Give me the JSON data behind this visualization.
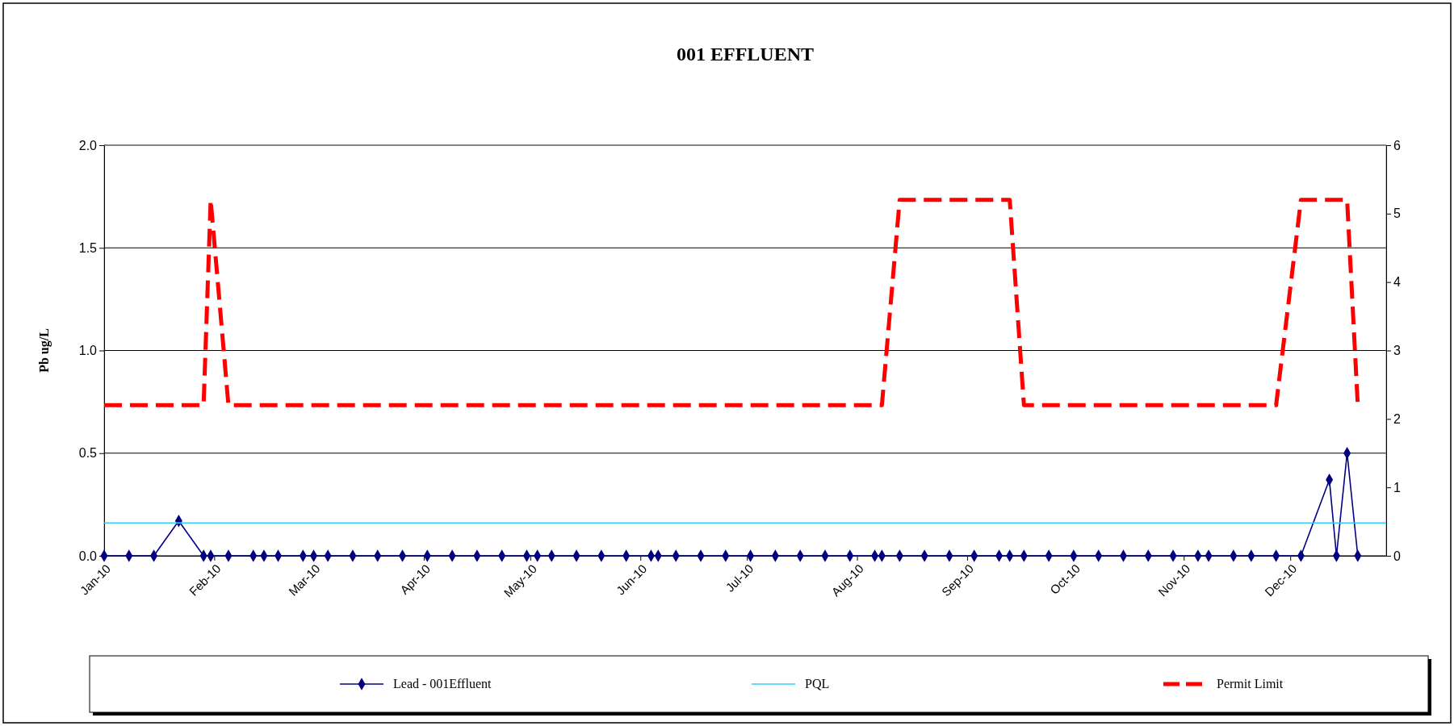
{
  "chart_data": {
    "type": "line",
    "title": "001 EFFLUENT",
    "ylabel": "Pb ug/L",
    "x": [
      "2010-01-01",
      "2010-01-08",
      "2010-01-15",
      "2010-01-22",
      "2010-01-29",
      "2010-01-31",
      "2010-02-05",
      "2010-02-12",
      "2010-02-15",
      "2010-02-19",
      "2010-02-26",
      "2010-03-01",
      "2010-03-05",
      "2010-03-12",
      "2010-03-19",
      "2010-03-26",
      "2010-04-02",
      "2010-04-09",
      "2010-04-16",
      "2010-04-23",
      "2010-04-30",
      "2010-05-03",
      "2010-05-07",
      "2010-05-14",
      "2010-05-21",
      "2010-05-28",
      "2010-06-04",
      "2010-06-06",
      "2010-06-11",
      "2010-06-18",
      "2010-06-25",
      "2010-07-02",
      "2010-07-09",
      "2010-07-16",
      "2010-07-23",
      "2010-07-30",
      "2010-08-06",
      "2010-08-08",
      "2010-08-13",
      "2010-08-20",
      "2010-08-27",
      "2010-09-03",
      "2010-09-10",
      "2010-09-13",
      "2010-09-17",
      "2010-09-24",
      "2010-10-01",
      "2010-10-08",
      "2010-10-15",
      "2010-10-22",
      "2010-10-29",
      "2010-11-05",
      "2010-11-08",
      "2010-11-15",
      "2010-11-20",
      "2010-11-27",
      "2010-12-04",
      "2010-12-12",
      "2010-12-14",
      "2010-12-17",
      "2010-12-20"
    ],
    "series": [
      {
        "name": "Lead - 001Effluent",
        "color": "#000080",
        "marker": "diamond",
        "values": [
          0,
          0,
          0,
          0.17,
          0,
          0,
          0,
          0,
          0,
          0,
          0,
          0,
          0,
          0,
          0,
          0,
          0,
          0,
          0,
          0,
          0,
          0,
          0,
          0,
          0,
          0,
          0,
          0,
          0,
          0,
          0,
          0,
          0,
          0,
          0,
          0,
          0,
          0,
          0,
          0,
          0,
          0,
          0,
          0,
          0,
          0,
          0,
          0,
          0,
          0,
          0,
          0,
          0,
          0,
          0,
          0,
          0,
          0.37,
          0,
          0.5,
          0
        ]
      },
      {
        "name": "PQL",
        "color": "#33ccff",
        "marker": "none",
        "x": [
          "2010-01-01",
          "2010-12-28"
        ],
        "values": [
          0.16,
          0.16
        ]
      },
      {
        "name": "Permit Limit",
        "color": "#ff0000",
        "marker": "none",
        "line_style": "dashed",
        "axis": "y2",
        "values": [
          2.2,
          2.2,
          2.2,
          2.2,
          2.2,
          5.2,
          2.2,
          2.2,
          2.2,
          2.2,
          2.2,
          2.2,
          2.2,
          2.2,
          2.2,
          2.2,
          2.2,
          2.2,
          2.2,
          2.2,
          2.2,
          2.2,
          2.2,
          2.2,
          2.2,
          2.2,
          2.2,
          2.2,
          2.2,
          2.2,
          2.2,
          2.2,
          2.2,
          2.2,
          2.2,
          2.2,
          2.2,
          2.2,
          5.2,
          5.2,
          5.2,
          5.2,
          5.2,
          5.2,
          2.2,
          2.2,
          2.2,
          2.2,
          2.2,
          2.2,
          2.2,
          2.2,
          2.2,
          2.2,
          2.2,
          2.2,
          5.2,
          5.2,
          5.2,
          5.2,
          2.2
        ]
      }
    ],
    "xlim": [
      "2010-01-01",
      "2010-12-28"
    ],
    "xticks": [
      {
        "value": "2010-01-01",
        "label": "Jan-10"
      },
      {
        "value": "2010-02-01",
        "label": "Feb-10"
      },
      {
        "value": "2010-03-01",
        "label": "Mar-10"
      },
      {
        "value": "2010-04-01",
        "label": "Apr-10"
      },
      {
        "value": "2010-05-01",
        "label": "May-10"
      },
      {
        "value": "2010-06-01",
        "label": "Jun-10"
      },
      {
        "value": "2010-07-01",
        "label": "Jul-10"
      },
      {
        "value": "2010-08-01",
        "label": "Aug-10"
      },
      {
        "value": "2010-09-01",
        "label": "Sep-10"
      },
      {
        "value": "2010-10-01",
        "label": "Oct-10"
      },
      {
        "value": "2010-11-01",
        "label": "Nov-10"
      },
      {
        "value": "2010-12-01",
        "label": "Dec-10"
      }
    ],
    "ylim": [
      0,
      2
    ],
    "yticks": [
      {
        "value": 0,
        "label": "0.0"
      },
      {
        "value": 0.5,
        "label": "0.5"
      },
      {
        "value": 1,
        "label": "1.0"
      },
      {
        "value": 1.5,
        "label": "1.5"
      },
      {
        "value": 2,
        "label": "2.0"
      }
    ],
    "y2lim": [
      0,
      6
    ],
    "y2ticks": [
      0,
      1,
      2,
      3,
      4,
      5,
      6
    ],
    "grid": "y",
    "legend": "bottom"
  }
}
